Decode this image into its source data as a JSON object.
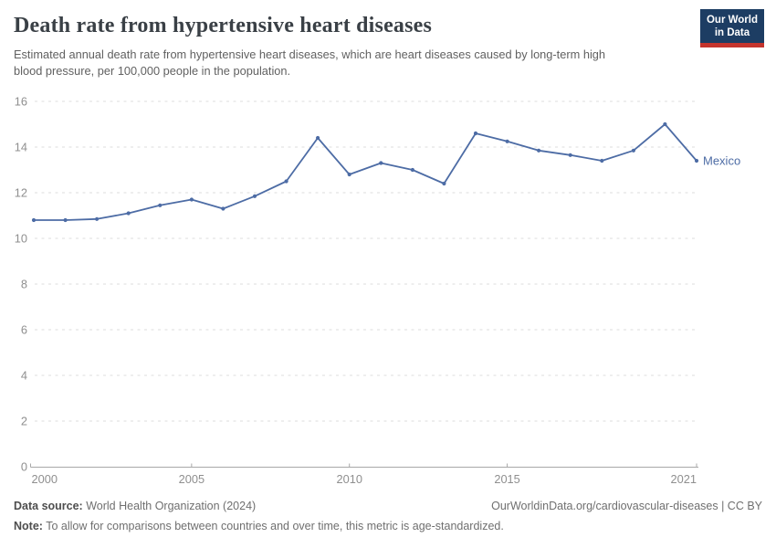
{
  "header": {
    "title": "Death rate from hypertensive heart diseases",
    "logo": {
      "line1": "Our World",
      "line2": "in Data"
    }
  },
  "subtitle": "Estimated annual death rate from hypertensive heart diseases, which are heart diseases caused by long-term high blood pressure, per 100,000 people in the population.",
  "chart_data": {
    "type": "line",
    "title": "Death rate from hypertensive heart diseases",
    "xlabel": "",
    "ylabel": "",
    "x": [
      2000,
      2001,
      2002,
      2003,
      2004,
      2005,
      2006,
      2007,
      2008,
      2009,
      2010,
      2011,
      2012,
      2013,
      2014,
      2015,
      2016,
      2017,
      2018,
      2019,
      2020,
      2021
    ],
    "series": [
      {
        "name": "Mexico",
        "values": [
          10.8,
          10.8,
          10.85,
          11.1,
          11.45,
          11.7,
          11.3,
          11.85,
          12.5,
          14.4,
          12.8,
          13.3,
          13.0,
          12.4,
          14.6,
          14.25,
          13.85,
          13.65,
          13.4,
          13.85,
          15.0,
          13.4
        ]
      }
    ],
    "xticks": [
      2000,
      2005,
      2010,
      2015,
      2021
    ],
    "yticks": [
      0,
      2,
      4,
      6,
      8,
      10,
      12,
      14,
      16
    ],
    "xlim": [
      2000,
      2021
    ],
    "ylim": [
      0,
      16
    ],
    "grid": true,
    "legend_position": "end-of-line",
    "entity_label": "Mexico"
  },
  "colors": {
    "line": "#4d6ca5",
    "entity_label": "#4d6ca5",
    "logo_bg": "#1d3d63",
    "logo_stripe": "#c4342d",
    "grid": "#dedede",
    "axis": "#a8a8a8",
    "tick_text": "#8f8f8f"
  },
  "footer": {
    "datasource_label": "Data source:",
    "datasource_value": "World Health Organization (2024)",
    "credit": "OurWorldinData.org/cardiovascular-diseases | CC BY",
    "note_label": "Note:",
    "note_value": "To allow for comparisons between countries and over time, this metric is age-standardized."
  }
}
